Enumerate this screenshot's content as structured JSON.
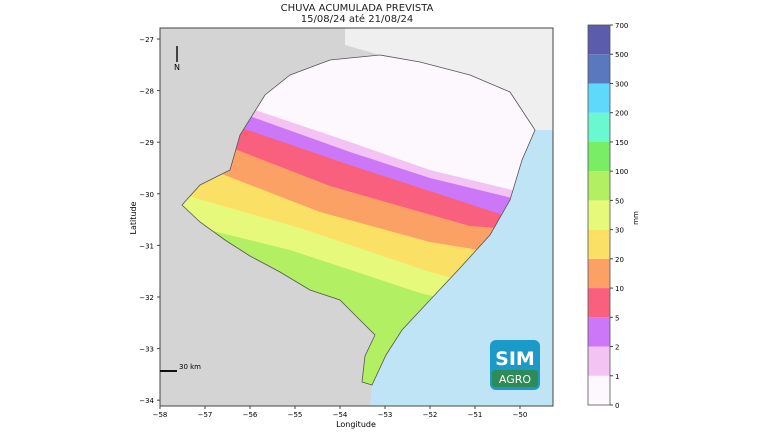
{
  "title": "CHUVA ACUMULADA PREVISTA",
  "subtitle": "15/08/24 até 21/08/24",
  "map": {
    "xlabel": "Longitude",
    "ylabel": "Latitude",
    "x_ticks": [
      "−58",
      "−57",
      "−56",
      "−55",
      "−54",
      "−53",
      "−52",
      "−51",
      "−50"
    ],
    "y_ticks": [
      "−27",
      "−28",
      "−29",
      "−30",
      "−31",
      "−32",
      "−33",
      "−34"
    ],
    "north_label": "N",
    "scale_label": "30 km",
    "colors": {
      "land_other": "#d4d4d4",
      "land_north": "#efefef",
      "ocean": "#bfe4f6"
    }
  },
  "colorbar": {
    "label": "mm",
    "ticks": [
      "0",
      "1",
      "2",
      "5",
      "10",
      "20",
      "30",
      "50",
      "100",
      "150",
      "200",
      "300",
      "500",
      "700"
    ],
    "colors": [
      "#fdf8fd",
      "#f3c3f3",
      "#cc77f7",
      "#f9607e",
      "#fba165",
      "#fbe066",
      "#e7f97a",
      "#b2ef63",
      "#79ee64",
      "#69f8cf",
      "#5ed9fb",
      "#5a78bd",
      "#5b5cab"
    ]
  },
  "logo": {
    "line1": "SIM",
    "line2": "AGRO",
    "bg": "#1b9ac9",
    "bg2": "#2e8b57"
  }
}
